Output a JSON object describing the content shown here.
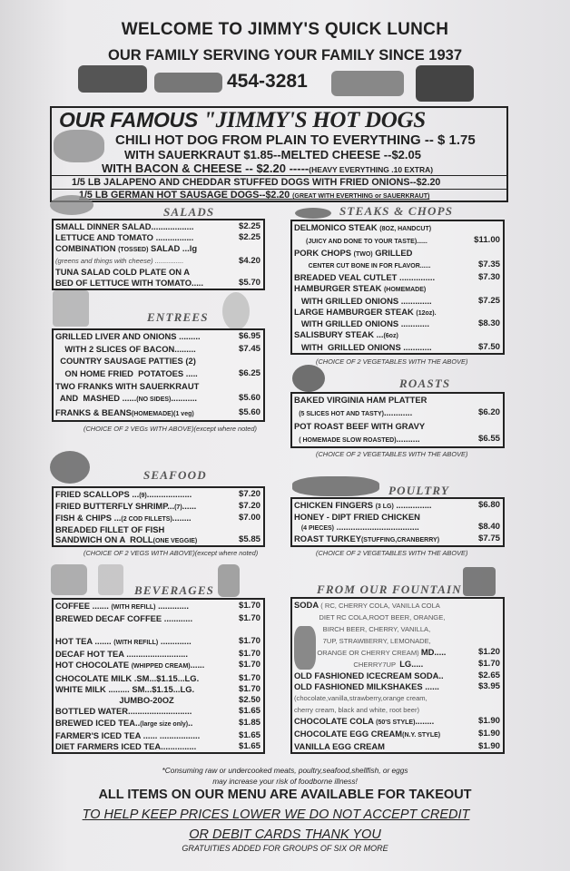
{
  "header": {
    "title": "WELCOME TO JIMMY'S QUICK LUNCH",
    "subtitle": "OUR FAMILY SERVING YOUR FAMILY SINCE 1937",
    "phone": "454-3281"
  },
  "hotdogs": {
    "title_a": "OUR FAMOUS ",
    "title_b": "\"JIMMY'S HOT DOGS",
    "line1": "CHILI HOT DOG FROM PLAIN TO EVERYTHING -- $ 1.75",
    "line2": "WITH SAUERKRAUT $1.85--MELTED CHEESE --$2.05",
    "line3": "WITH BACON & CHEESE -- $2.20 -----",
    "line3_small": "(HEAVY EVERYTHING .10 EXTRA)",
    "line4": "1/5 LB JALAPENO AND CHEDDAR STUFFED DOGS WITH FRIED ONIONS--$2.20",
    "line5": "1/5 LB GERMAN HOT SAUSAGE DOGS--$2.20 ",
    "line5_small": "(GREAT WITH EVERTHING or SAUERKRAUT)"
  },
  "sections": {
    "salads": {
      "title": "SALADS",
      "note": "",
      "items": [
        {
          "seg": [
            [
              "SMALL DINNER SALAD..................",
              0
            ]
          ],
          "price": "$2.25"
        },
        {
          "seg": [
            [
              "LETTUCE AND TOMATO ................",
              0
            ]
          ],
          "price": "$2.25"
        },
        {
          "seg": [
            [
              "COMBINATION ",
              0
            ],
            [
              "(TOSSED)",
              1
            ],
            [
              " SALAD ...lg",
              0
            ]
          ],
          "price": ""
        },
        {
          "seg": [
            [
              "(greens and things with cheese) ...............",
              0
            ]
          ],
          "price": "$4.20",
          "cls": "note"
        },
        {
          "seg": [
            [
              "TUNA SALAD COLD PLATE ON A",
              0
            ]
          ],
          "price": ""
        },
        {
          "seg": [
            [
              "BED OF LETTUCE WITH TOMATO.....",
              0
            ]
          ],
          "price": "$5.70"
        }
      ]
    },
    "entrees": {
      "title": "ENTREES",
      "note": "(CHOICE OF 2 VEGs WITH ABOVE)(except where noted)",
      "items": [
        {
          "seg": [
            [
              "GRILLED LIVER AND ONIONS .........",
              0
            ]
          ],
          "price": "$6.95"
        },
        {
          "seg": [
            [
              "    WITH 2 SLICES OF BACON.........",
              0
            ]
          ],
          "price": "$7.45"
        },
        {
          "seg": [
            [
              "  COUNTRY SAUSAGE PATTIES (2)",
              0
            ]
          ],
          "price": ""
        },
        {
          "seg": [
            [
              "    ON HOME FRIED  POTATOES .....",
              0
            ]
          ],
          "price": "$6.25"
        },
        {
          "seg": [
            [
              "TWO FRANKS WITH SAUERKRAUT",
              0
            ]
          ],
          "price": ""
        },
        {
          "seg": [
            [
              "  AND  MASHED ......",
              0
            ],
            [
              "(NO SIDES)",
              1
            ],
            [
              "...........",
              0
            ]
          ],
          "price": "$5.60"
        },
        {
          "seg": [
            [
              "FRANKS & BEANS",
              0
            ],
            [
              "(HOMEMADE)(1 veg)",
              1
            ]
          ],
          "price": "$5.60"
        }
      ]
    },
    "seafood": {
      "title": "SEAFOOD",
      "note": "(CHOICE OF 2 VEGS WITH ABOVE)(except where noted)",
      "items": [
        {
          "seg": [
            [
              "FRIED SCALLOPS ...",
              0
            ],
            [
              "(9)",
              1
            ],
            [
              "...................",
              0
            ]
          ],
          "price": "$7.20"
        },
        {
          "seg": [
            [
              "FRIED BUTTERFLY SHRIMP...",
              0
            ],
            [
              "(7)",
              1
            ],
            [
              "......",
              0
            ]
          ],
          "price": "$7.20"
        },
        {
          "seg": [
            [
              "FISH & CHIPS ...",
              0
            ],
            [
              "(2 COD FILLETS)",
              1
            ],
            [
              "........",
              0
            ]
          ],
          "price": "$7.00"
        },
        {
          "seg": [
            [
              "BREADED FILLET OF FISH",
              0
            ]
          ],
          "price": ""
        },
        {
          "seg": [
            [
              "SANDWICH ON A  ROLL",
              0
            ],
            [
              "(ONE VEGGIE)",
              1
            ]
          ],
          "price": "$5.85"
        }
      ]
    },
    "beverages": {
      "title": "BEVERAGES",
      "note": "",
      "items": [
        {
          "seg": [
            [
              "COFFEE ....... ",
              0
            ],
            [
              "(WITH REFILL)",
              1
            ],
            [
              " .............",
              0
            ]
          ],
          "price": "$1.70"
        },
        {
          "seg": [
            [
              "BREWED DECAF COFFEE ............",
              0
            ]
          ],
          "price": "$1.70"
        },
        {
          "seg": [
            [
              " ",
              0
            ]
          ],
          "price": ""
        },
        {
          "seg": [
            [
              "HOT TEA ....... ",
              0
            ],
            [
              "(WITH REFILL)",
              1
            ],
            [
              " .............",
              0
            ]
          ],
          "price": "$1.70"
        },
        {
          "seg": [
            [
              "DECAF HOT TEA ..........................",
              0
            ]
          ],
          "price": "$1.70"
        },
        {
          "seg": [
            [
              "HOT CHOCOLATE ",
              0
            ],
            [
              "(WHIPPED CREAM)",
              1
            ],
            [
              "......",
              0
            ]
          ],
          "price": "$1.70"
        },
        {
          "seg": [
            [
              "CHOCOLATE MILK .SM...$1.15...LG.",
              0
            ]
          ],
          "price": "$1.70"
        },
        {
          "seg": [
            [
              "WHITE MILK ......... SM...$1.15...LG.",
              0
            ]
          ],
          "price": "$1.70"
        },
        {
          "seg": [
            [
              "                           JUMBO-20OZ",
              0
            ]
          ],
          "price": "$2.50"
        },
        {
          "seg": [
            [
              "BOTTLED WATER...........................",
              0
            ]
          ],
          "price": "$1.65"
        },
        {
          "seg": [
            [
              "BREWED ICED TEA..",
              0
            ],
            [
              "(large size only)",
              1
            ],
            [
              "..",
              0
            ]
          ],
          "price": "$1.85"
        },
        {
          "seg": [
            [
              "FARMER'S ICED TEA ...... .................",
              0
            ]
          ],
          "price": "$1.65"
        },
        {
          "seg": [
            [
              "DIET FARMERS ICED TEA...............",
              0
            ]
          ],
          "price": "$1.65"
        }
      ]
    },
    "steaks": {
      "title": "STEAKS & CHOPS",
      "note": "(CHOICE OF 2 VEGETABLES WITH THE ABOVE)",
      "items": [
        {
          "seg": [
            [
              "DELMONICO STEAK ",
              0
            ],
            [
              "(8OZ, HANDCUT)",
              1
            ]
          ],
          "price": ""
        },
        {
          "seg": [
            [
              "     ",
              0
            ],
            [
              "(JUICY AND DONE TO YOUR TASTE)......",
              1
            ]
          ],
          "price": "$11.00"
        },
        {
          "seg": [
            [
              "PORK CHOPS ",
              0
            ],
            [
              "(TWO)",
              1
            ],
            [
              " GRILLED",
              0
            ]
          ],
          "price": ""
        },
        {
          "seg": [
            [
              "      ",
              0
            ],
            [
              "CENTER CUT BONE IN FOR FLAVOR......",
              1
            ]
          ],
          "price": "$7.35"
        },
        {
          "seg": [
            [
              "BREADED VEAL CUTLET ...............",
              0
            ]
          ],
          "price": "$7.30"
        },
        {
          "seg": [
            [
              "HAMBURGER STEAK ",
              0
            ],
            [
              "(HOMEMADE)",
              1
            ]
          ],
          "price": ""
        },
        {
          "seg": [
            [
              "   WITH GRILLED ONIONS .............",
              0
            ]
          ],
          "price": "$7.25"
        },
        {
          "seg": [
            [
              "LARGE HAMBURGER STEAK ",
              0
            ],
            [
              "(12oz).",
              1
            ]
          ],
          "price": ""
        },
        {
          "seg": [
            [
              "   WITH GRILLED ONIONS ............",
              0
            ]
          ],
          "price": "$8.30"
        },
        {
          "seg": [
            [
              "SALISBURY STEAK ...",
              0
            ],
            [
              "(6oz)",
              1
            ]
          ],
          "price": ""
        },
        {
          "seg": [
            [
              "   WITH  GRILLED ONIONS ............",
              0
            ]
          ],
          "price": "$7.50"
        }
      ]
    },
    "roasts": {
      "title": "ROASTS",
      "note": "(CHOICE OF 2 VEGETABLES WITH THE ABOVE)",
      "items": [
        {
          "seg": [
            [
              "BAKED VIRGINIA HAM PLATTER",
              0
            ]
          ],
          "price": ""
        },
        {
          "seg": [
            [
              "  ",
              0
            ],
            [
              "(5 SLICES HOT AND TASTY)",
              1
            ],
            [
              "............",
              0
            ]
          ],
          "price": "$6.20"
        },
        {
          "seg": [
            [
              "POT ROAST BEEF WITH GRAVY",
              0
            ]
          ],
          "price": ""
        },
        {
          "seg": [
            [
              "  ",
              0
            ],
            [
              "( HOMEMADE SLOW ROASTED)",
              1
            ],
            [
              "..........",
              0
            ]
          ],
          "price": "$6.55"
        }
      ]
    },
    "poultry": {
      "title": "POULTRY",
      "note": "(CHOICE OF 2 VEGETABLES WITH THE ABOVE)",
      "items": [
        {
          "seg": [
            [
              "CHICKEN FINGERS ",
              0
            ],
            [
              "(3 LG)",
              1
            ],
            [
              " ...............",
              0
            ]
          ],
          "price": "$6.80"
        },
        {
          "seg": [
            [
              "HONEY - DIPT FRIED CHICKEN",
              0
            ]
          ],
          "price": ""
        },
        {
          "seg": [
            [
              "   ",
              0
            ],
            [
              "(4 PIECES)",
              1
            ],
            [
              " ...................................",
              0
            ]
          ],
          "price": "$8.40"
        },
        {
          "seg": [
            [
              "ROAST TURKEY",
              0
            ],
            [
              "(STUFFING,CRANBERRY)",
              1
            ]
          ],
          "price": "$7.75"
        }
      ]
    },
    "fountain": {
      "title": "FROM OUR FOUNTAIN",
      "note": "",
      "items": [
        {
          "seg": [
            [
              "SODA",
              0
            ],
            [
              " ( RC, CHERRY COLA, VANILLA COLA",
              2
            ]
          ],
          "price": ""
        },
        {
          "seg": [
            [
              "             DIET RC COLA,ROOT BEER, ORANGE,",
              2
            ]
          ],
          "price": ""
        },
        {
          "seg": [
            [
              "               BIRCH BEER, CHERRY, VANILLA,",
              2
            ]
          ],
          "price": ""
        },
        {
          "seg": [
            [
              "               7UP, STRAWBERRY, LEMONADE,",
              2
            ]
          ],
          "price": ""
        },
        {
          "seg": [
            [
              "            ORANGE OR CHERRY CREAM) ",
              2
            ],
            [
              "MD.....",
              0
            ]
          ],
          "price": "$1.20"
        },
        {
          "seg": [
            [
              "                               CHERRY7UP  ",
              2
            ],
            [
              "LG.....",
              0
            ]
          ],
          "price": "$1.70"
        },
        {
          "seg": [
            [
              "OLD FASHIONED ICECREAM SODA..",
              0
            ]
          ],
          "price": "$2.65"
        },
        {
          "seg": [
            [
              "OLD FASHIONED MILKSHAKES ......",
              0
            ]
          ],
          "price": "$3.95"
        },
        {
          "seg": [
            [
              "(chocolate,vanilla,strawberry,orange cream,",
              2
            ]
          ],
          "price": ""
        },
        {
          "seg": [
            [
              "cherry cream, black and white, root beer)",
              2
            ]
          ],
          "price": ""
        },
        {
          "seg": [
            [
              "CHOCOLATE COLA ",
              0
            ],
            [
              "(50'S STYLE)",
              1
            ],
            [
              "........",
              0
            ]
          ],
          "price": "$1.90"
        },
        {
          "seg": [
            [
              "CHOCOLATE EGG CREAM",
              0
            ],
            [
              "(N.Y. STYLE)",
              1
            ]
          ],
          "price": "$1.90"
        },
        {
          "seg": [
            [
              "VANILLA EGG CREAM",
              0
            ]
          ],
          "price": "$1.90"
        }
      ]
    }
  },
  "footer": {
    "warning1": "*Consuming raw or undercooked meats, poultry,seafood,shellfish, or eggs",
    "warning2": "may increase your risk of foodborne illness!",
    "takeout": "ALL ITEMS ON OUR MENU ARE AVAILABLE FOR TAKEOUT",
    "credit1": "TO HELP KEEP PRICES LOWER WE DO NOT ACCEPT CREDIT",
    "credit2": "OR DEBIT CARDS THANK YOU",
    "gratuity": "GRATUITIES ADDED FOR GROUPS OF SIX OR MORE"
  },
  "icons": [
    "vintage-truck-icon",
    "classic-car-icon",
    "corvette-icon",
    "sports-car-icon",
    "hot-dog-icon",
    "salad-bowl-icon",
    "plate-icon",
    "chef-icon",
    "fish-icon",
    "steak-icon",
    "roast-icon",
    "poultry-icon",
    "coffee-cup-icon",
    "glass-icon",
    "iced-drink-icon",
    "soda-cup-icon",
    "milkshake-icon"
  ]
}
